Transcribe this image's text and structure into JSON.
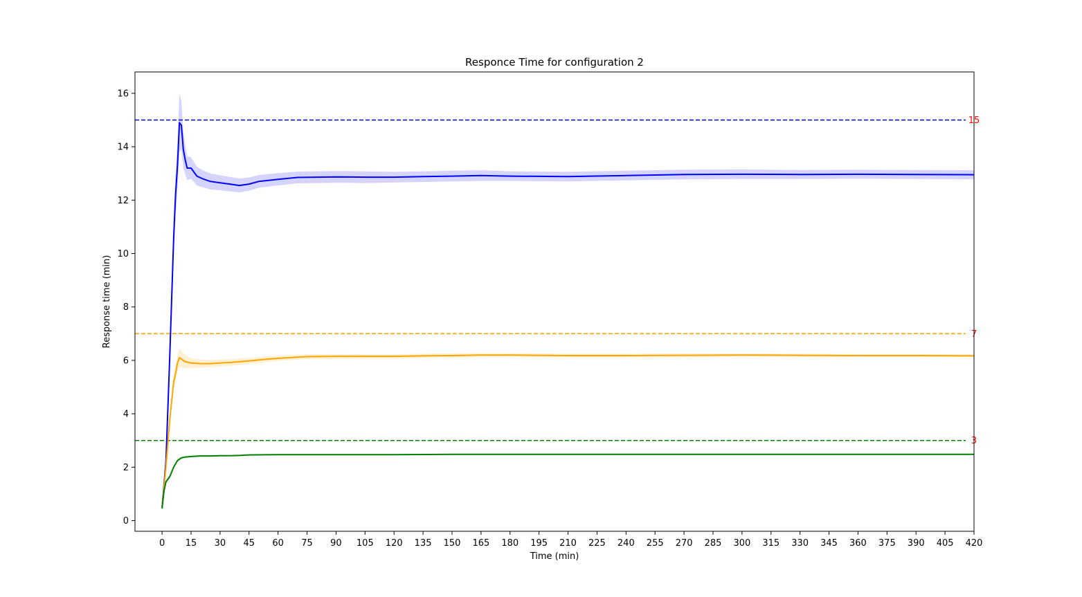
{
  "chart_data": {
    "type": "line",
    "title": "Responce Time for configuration 2",
    "xlabel": "Time (min)",
    "ylabel": "Response time (min)",
    "xlim": [
      -14,
      420
    ],
    "ylim": [
      -0.4,
      16.8
    ],
    "x_ticks": [
      0,
      15,
      30,
      45,
      60,
      75,
      90,
      105,
      120,
      135,
      150,
      165,
      180,
      195,
      210,
      225,
      240,
      255,
      270,
      285,
      300,
      315,
      330,
      345,
      360,
      375,
      390,
      405,
      420
    ],
    "y_ticks": [
      0,
      2,
      4,
      6,
      8,
      10,
      12,
      14,
      16
    ],
    "grid": false,
    "reference_lines": [
      {
        "y": 15,
        "color": "#0000cc",
        "label": "15",
        "label_color": "#ff0000"
      },
      {
        "y": 7,
        "color": "#ffa500",
        "label": "7",
        "label_color": "#ff0000"
      },
      {
        "y": 3,
        "color": "#008000",
        "label": "3",
        "label_color": "#ff0000"
      }
    ],
    "series": [
      {
        "color": "#0000ff",
        "band_color": "#0000ff",
        "x": [
          0,
          2,
          4,
          6,
          7,
          8,
          9,
          10,
          11,
          12,
          13,
          15,
          18,
          21,
          25,
          30,
          35,
          40,
          45,
          50,
          60,
          70,
          80,
          90,
          105,
          120,
          135,
          150,
          165,
          180,
          210,
          240,
          270,
          300,
          330,
          360,
          390,
          420
        ],
        "y": [
          0.5,
          2.2,
          6.2,
          10.6,
          12.2,
          13.3,
          14.9,
          14.8,
          13.9,
          13.5,
          13.2,
          13.2,
          12.9,
          12.8,
          12.7,
          12.65,
          12.6,
          12.55,
          12.6,
          12.7,
          12.78,
          12.85,
          12.86,
          12.87,
          12.86,
          12.86,
          12.88,
          12.9,
          12.92,
          12.9,
          12.88,
          12.92,
          12.96,
          12.97,
          12.96,
          12.97,
          12.96,
          12.95
        ],
        "band": [
          0.1,
          0.3,
          0.5,
          0.7,
          0.8,
          0.9,
          1.1,
          0.9,
          0.7,
          0.55,
          0.45,
          0.4,
          0.35,
          0.32,
          0.3,
          0.28,
          0.27,
          0.26,
          0.25,
          0.24,
          0.23,
          0.22,
          0.22,
          0.22,
          0.22,
          0.2,
          0.2,
          0.2,
          0.2,
          0.18,
          0.18,
          0.18,
          0.18,
          0.18,
          0.17,
          0.17,
          0.17,
          0.17
        ]
      },
      {
        "color": "#ffa500",
        "band_color": "#ffa500",
        "x": [
          0,
          2,
          4,
          6,
          7,
          8,
          9,
          10,
          12,
          14,
          15,
          20,
          25,
          30,
          35,
          40,
          45,
          55,
          65,
          75,
          90,
          105,
          120,
          135,
          150,
          165,
          180,
          210,
          240,
          270,
          300,
          330,
          360,
          390,
          420
        ],
        "y": [
          0.5,
          2.0,
          3.8,
          5.2,
          5.5,
          5.9,
          6.1,
          6.05,
          5.95,
          5.92,
          5.9,
          5.88,
          5.88,
          5.9,
          5.92,
          5.95,
          5.98,
          6.05,
          6.1,
          6.14,
          6.15,
          6.15,
          6.15,
          6.17,
          6.18,
          6.2,
          6.2,
          6.18,
          6.18,
          6.19,
          6.2,
          6.19,
          6.18,
          6.18,
          6.17
        ],
        "band": [
          0.05,
          0.1,
          0.2,
          0.3,
          0.3,
          0.32,
          0.35,
          0.3,
          0.25,
          0.2,
          0.18,
          0.15,
          0.14,
          0.13,
          0.12,
          0.12,
          0.11,
          0.1,
          0.1,
          0.09,
          0.09,
          0.08,
          0.08,
          0.08,
          0.08,
          0.07,
          0.07,
          0.07,
          0.07,
          0.07,
          0.06,
          0.06,
          0.06,
          0.06,
          0.06
        ]
      },
      {
        "color": "#008000",
        "band_color": "#00a000",
        "x": [
          0,
          1,
          2,
          4,
          6,
          8,
          10,
          12,
          15,
          20,
          25,
          30,
          35,
          40,
          45,
          60,
          75,
          90,
          105,
          120,
          150,
          180,
          210,
          240,
          270,
          300,
          330,
          360,
          390,
          420
        ],
        "y": [
          0.45,
          1.1,
          1.45,
          1.65,
          2.0,
          2.25,
          2.35,
          2.38,
          2.4,
          2.42,
          2.42,
          2.43,
          2.43,
          2.44,
          2.46,
          2.47,
          2.47,
          2.47,
          2.47,
          2.47,
          2.48,
          2.48,
          2.48,
          2.48,
          2.48,
          2.48,
          2.48,
          2.48,
          2.48,
          2.48
        ],
        "band": [
          0.08,
          0.08,
          0.07,
          0.06,
          0.05,
          0.04,
          0.04,
          0.03,
          0.03,
          0.03,
          0.03,
          0.03,
          0.02,
          0.02,
          0.02,
          0.02,
          0.02,
          0.02,
          0.02,
          0.02,
          0.02,
          0.02,
          0.02,
          0.02,
          0.02,
          0.02,
          0.02,
          0.02,
          0.02,
          0.02
        ]
      }
    ]
  }
}
